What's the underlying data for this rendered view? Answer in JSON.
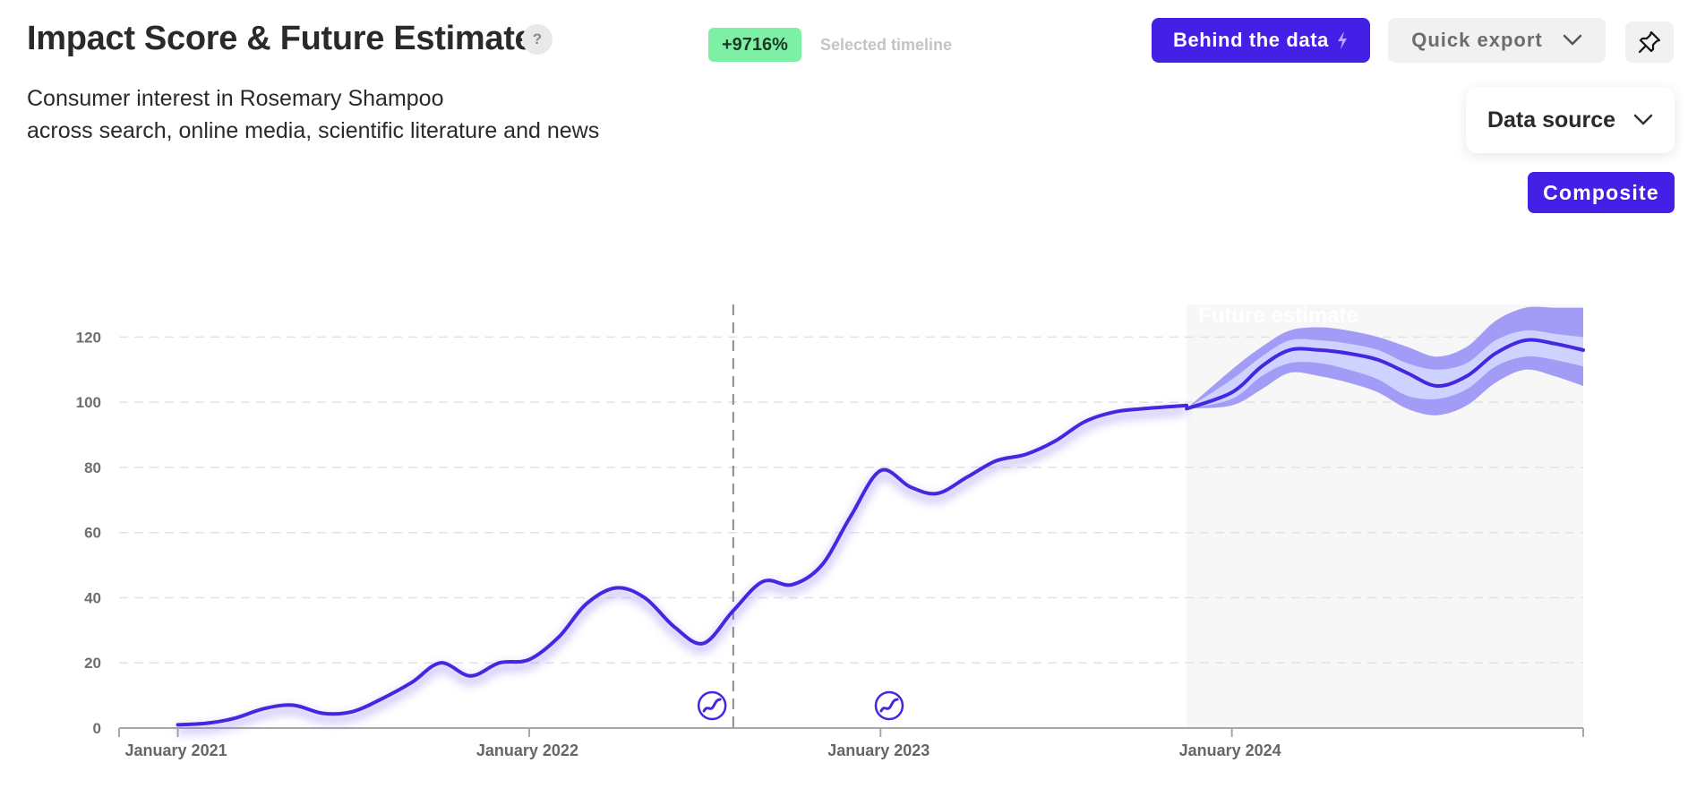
{
  "header": {
    "title": "Impact Score & Future Estimate",
    "help_label": "?",
    "change_badge": "+9716%",
    "timeline_label": "Selected timeline",
    "subtitle_line1": "Consumer interest in Rosemary Shampoo",
    "subtitle_line2": "across search, online media, scientific literature and news"
  },
  "toolbar": {
    "behind_data_label": "Behind the data",
    "quick_export_label": "Quick export",
    "data_source_label": "Data source",
    "composite_label": "Composite"
  },
  "icons": {
    "behind_data": "lightning-icon",
    "export_chevron": "chevron-down-icon",
    "pin": "pin-icon",
    "data_source_chevron": "chevron-down-icon",
    "event_marker": "trend-event-icon"
  },
  "colors": {
    "accent": "#4420e6",
    "line": "#4427e0",
    "band_outer": "#a39cf6",
    "band_inner": "#cdd2ff",
    "badge": "#7ef0a6",
    "future_bg": "#f7f7f7"
  },
  "chart_data": {
    "type": "line",
    "title": "Impact Score & Future Estimate",
    "xlabel": "",
    "ylabel": "",
    "ylim": [
      0,
      130
    ],
    "y_ticks": [
      0,
      20,
      40,
      60,
      80,
      100,
      120
    ],
    "x_ticks": [
      "January 2021",
      "January 2022",
      "January 2023",
      "January 2024"
    ],
    "x_range": [
      "2020-11-01",
      "2024-12-31"
    ],
    "grid": true,
    "future_label": "Future estimate",
    "future_start": "2023-11-15",
    "marker_date": "2022-08-01",
    "event_markers": [
      "2022-07-10",
      "2023-01-10"
    ],
    "series": [
      {
        "type": "historical",
        "points": [
          [
            "2021-01-01",
            1
          ],
          [
            "2021-02-01",
            1.5
          ],
          [
            "2021-03-01",
            3
          ],
          [
            "2021-04-01",
            6
          ],
          [
            "2021-05-01",
            7
          ],
          [
            "2021-06-01",
            4.5
          ],
          [
            "2021-07-01",
            5
          ],
          [
            "2021-08-01",
            9
          ],
          [
            "2021-09-01",
            14
          ],
          [
            "2021-10-01",
            20
          ],
          [
            "2021-11-01",
            16
          ],
          [
            "2021-12-01",
            20
          ],
          [
            "2022-01-01",
            21
          ],
          [
            "2022-02-01",
            28
          ],
          [
            "2022-03-01",
            38
          ],
          [
            "2022-04-01",
            43
          ],
          [
            "2022-05-01",
            40
          ],
          [
            "2022-06-01",
            31
          ],
          [
            "2022-07-01",
            26
          ],
          [
            "2022-08-01",
            36
          ],
          [
            "2022-09-01",
            45
          ],
          [
            "2022-10-01",
            44
          ],
          [
            "2022-11-01",
            50
          ],
          [
            "2022-12-01",
            65
          ],
          [
            "2023-01-01",
            79
          ],
          [
            "2023-02-01",
            74
          ],
          [
            "2023-03-01",
            72
          ],
          [
            "2023-04-01",
            77
          ],
          [
            "2023-05-01",
            82
          ],
          [
            "2023-06-01",
            84
          ],
          [
            "2023-07-01",
            88
          ],
          [
            "2023-08-01",
            94
          ],
          [
            "2023-09-01",
            97
          ],
          [
            "2023-10-01",
            98
          ],
          [
            "2023-11-15",
            99
          ]
        ]
      },
      {
        "type": "forecast",
        "points": [
          [
            "2023-11-15",
            98,
            98,
            98,
            98,
            98
          ],
          [
            "2024-01-01",
            103,
            99,
            101,
            107,
            110
          ],
          [
            "2024-02-01",
            111,
            104,
            108,
            114,
            117
          ],
          [
            "2024-03-01",
            116,
            109,
            112,
            119,
            122
          ],
          [
            "2024-04-01",
            116,
            108,
            112,
            119,
            123
          ],
          [
            "2024-05-01",
            115,
            106,
            110,
            118,
            122
          ],
          [
            "2024-06-01",
            113,
            103,
            107,
            116,
            120
          ],
          [
            "2024-07-01",
            109,
            98,
            102,
            112,
            117
          ],
          [
            "2024-08-01",
            105,
            96,
            101,
            110,
            114
          ],
          [
            "2024-09-01",
            108,
            99,
            104,
            112,
            117
          ],
          [
            "2024-10-01",
            115,
            106,
            111,
            119,
            125
          ],
          [
            "2024-11-01",
            119,
            110,
            114,
            122,
            129
          ],
          [
            "2024-12-01",
            118,
            108,
            113,
            121,
            129
          ],
          [
            "2024-12-31",
            116,
            105,
            111,
            120,
            129
          ]
        ]
      }
    ]
  }
}
